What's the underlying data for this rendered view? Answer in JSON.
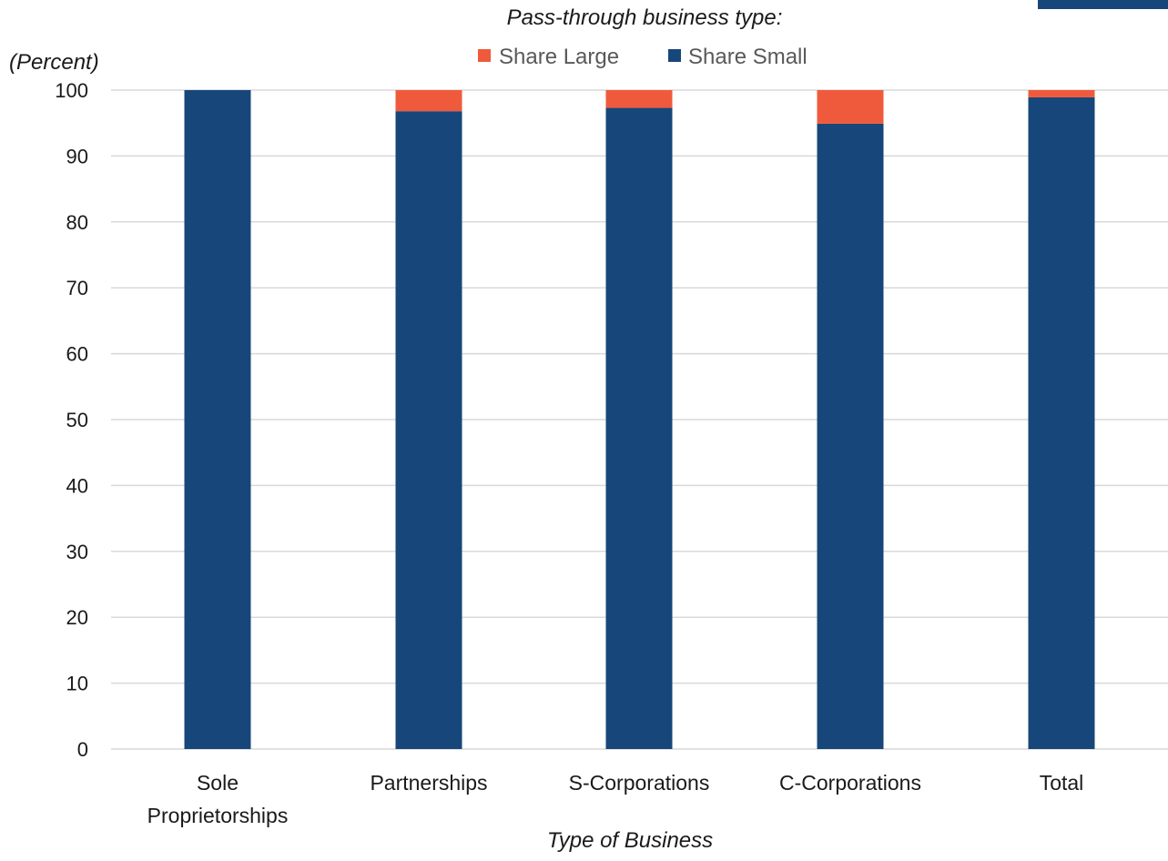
{
  "chart_data": {
    "type": "bar",
    "stacked": true,
    "categories": [
      "Sole Proprietorships",
      "Partnerships",
      "S-Corporations",
      "C-Corporations",
      "Total"
    ],
    "category_label_lines": [
      [
        "Sole",
        "Proprietorships"
      ],
      [
        "Partnerships"
      ],
      [
        "S-Corporations"
      ],
      [
        "C-Corporations"
      ],
      [
        "Total"
      ]
    ],
    "series": [
      {
        "name": "Share Small",
        "color": "#17477a",
        "values": [
          100,
          96.8,
          97.3,
          94.9,
          98.9
        ]
      },
      {
        "name": "Share Large",
        "color": "#f05a3c",
        "values": [
          0,
          3.2,
          2.7,
          5.1,
          1.1
        ]
      }
    ],
    "legend_order": [
      "Share Large",
      "Share Small"
    ],
    "legend_title": "Pass-through business type:",
    "legend_position": "top-center",
    "ylabel": "(Percent)",
    "xlabel": "Type of Business",
    "ylim": [
      0,
      100
    ],
    "yticks": [
      0,
      10,
      20,
      30,
      40,
      50,
      60,
      70,
      80,
      90,
      100
    ],
    "grid": true
  }
}
